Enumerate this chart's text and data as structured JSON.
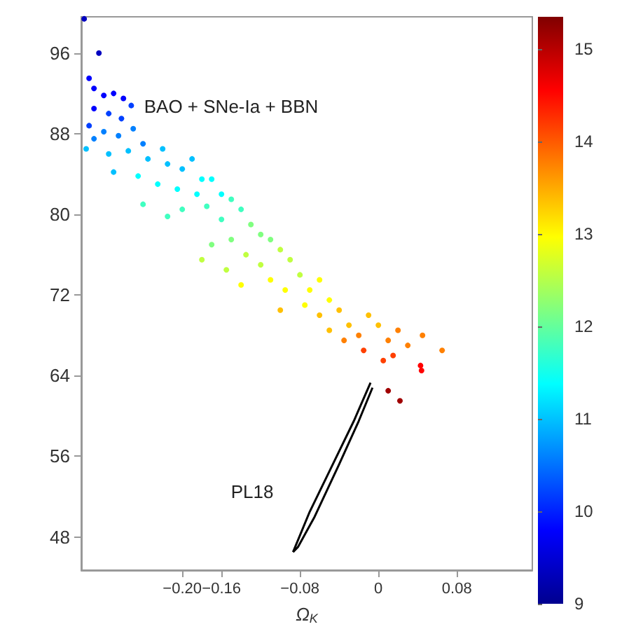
{
  "chart_data": {
    "type": "scatter",
    "xlabel": "Ω$_{K}$",
    "xlim": [
      -0.303,
      0.157
    ],
    "ylim": [
      44.7,
      99.6
    ],
    "xticks": [
      {
        "value": -0.2,
        "label": "−0.20"
      },
      -0.16,
      -0.08,
      0,
      0.08
    ],
    "yticks": [
      48,
      56,
      64,
      72,
      80,
      88,
      96
    ],
    "clim": [
      9,
      15.35
    ],
    "cticks": [
      9,
      10,
      11,
      12,
      13,
      14,
      15
    ],
    "grid": false,
    "annotations": [
      "BAO + SNe-Ia + BBN",
      "PL18"
    ],
    "series": [
      {
        "x": [
          -0.3,
          -0.285,
          -0.295,
          -0.29,
          -0.28,
          -0.27,
          -0.26,
          -0.252,
          -0.29,
          -0.275,
          -0.262,
          -0.295,
          -0.28,
          -0.265,
          -0.25,
          -0.24,
          -0.29,
          -0.298,
          -0.275,
          -0.255,
          -0.235,
          -0.22,
          -0.215,
          -0.2,
          -0.19,
          -0.18,
          -0.27,
          -0.245,
          -0.225,
          -0.205,
          -0.185,
          -0.17,
          -0.16,
          -0.15,
          -0.2,
          -0.175,
          -0.24,
          -0.215,
          -0.16,
          -0.14,
          -0.13,
          -0.12,
          -0.15,
          -0.17,
          -0.11,
          -0.1,
          -0.135,
          -0.18,
          -0.155,
          -0.12,
          -0.09,
          -0.08,
          -0.11,
          -0.14,
          -0.095,
          -0.07,
          -0.06,
          -0.075,
          -0.05,
          -0.1,
          -0.06,
          -0.04,
          -0.03,
          -0.05,
          -0.02,
          -0.01,
          0,
          -0.035,
          0.01,
          0.02,
          0.03,
          -0.015,
          0.045,
          0.065,
          0.005,
          0.015,
          0.043,
          0.044,
          0.01,
          0.022
        ],
        "values": [
          99.4,
          96,
          93.5,
          92.5,
          91.8,
          92,
          91.5,
          90.8,
          90.5,
          90,
          89.5,
          88.8,
          88.2,
          87.8,
          88.5,
          87,
          87.5,
          86.5,
          86,
          86.3,
          85.5,
          86.5,
          85,
          84.5,
          85.5,
          83.5,
          84.2,
          83.8,
          83,
          82.5,
          82,
          83.5,
          82,
          81.5,
          80.5,
          80.8,
          81,
          79.8,
          79.5,
          80.5,
          79,
          78,
          77.5,
          77,
          77.5,
          76.5,
          76,
          75.5,
          74.5,
          75,
          75.5,
          74,
          73.5,
          73,
          72.5,
          72.5,
          73.5,
          71,
          71.5,
          70.5,
          70,
          70.5,
          69,
          68.5,
          68,
          70,
          69,
          67.5,
          67.5,
          68.5,
          67,
          66.5,
          68,
          66.5,
          65.5,
          66,
          65,
          64.5,
          62.5,
          61.5
        ],
        "colors": [
          "#0000c0",
          "#0000c0",
          "#0000ff",
          "#0000ff",
          "#0000ff",
          "#0000ff",
          "#0000ff",
          "#0040ff",
          "#0000ff",
          "#0040ff",
          "#0040ff",
          "#0040ff",
          "#0080ff",
          "#0080ff",
          "#0080ff",
          "#0080ff",
          "#0080ff",
          "#00c0ff",
          "#00c0ff",
          "#00c0ff",
          "#00c0ff",
          "#00c0ff",
          "#00c0ff",
          "#00c0ff",
          "#00c0ff",
          "#00ffff",
          "#00c0ff",
          "#00ffff",
          "#00ffff",
          "#00ffff",
          "#00ffff",
          "#00ffff",
          "#00ffff",
          "#40ffc0",
          "#40ffc0",
          "#40ffc0",
          "#40ffc0",
          "#40ffc0",
          "#40ffc0",
          "#40ffc0",
          "#80ff80",
          "#80ff80",
          "#80ff80",
          "#80ff80",
          "#80ff80",
          "#c0ff40",
          "#c0ff40",
          "#c0ff40",
          "#c0ff40",
          "#c0ff40",
          "#c0ff40",
          "#c0ff40",
          "#ffff00",
          "#ffff00",
          "#ffff00",
          "#ffff00",
          "#ffff00",
          "#ffff00",
          "#ffff00",
          "#ffc000",
          "#ffc000",
          "#ffc000",
          "#ffc000",
          "#ffc000",
          "#ff8000",
          "#ffc000",
          "#ffc000",
          "#ff8000",
          "#ff8000",
          "#ff8000",
          "#ff8000",
          "#ff4000",
          "#ff8000",
          "#ff8000",
          "#ff4000",
          "#ff4000",
          "#ff0000",
          "#ff0000",
          "#a00000",
          "#a00000"
        ]
      },
      {
        "type": "line",
        "color": "#000000",
        "x": [
          -0.087,
          -0.07,
          -0.045,
          -0.025,
          -0.008
        ],
        "values": [
          46.5,
          50.5,
          55.5,
          59.5,
          63.3
        ]
      },
      {
        "type": "line",
        "color": "#000000",
        "x": [
          -0.087,
          -0.082,
          -0.065,
          -0.04,
          -0.02,
          -0.006
        ],
        "values": [
          46.5,
          47,
          50,
          55.2,
          59.5,
          62.8
        ]
      }
    ]
  }
}
